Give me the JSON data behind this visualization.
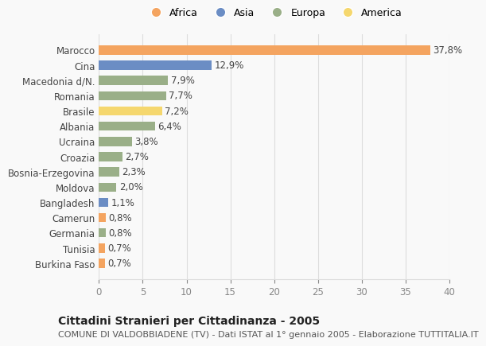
{
  "countries": [
    "Marocco",
    "Cina",
    "Macedonia d/N.",
    "Romania",
    "Brasile",
    "Albania",
    "Ucraina",
    "Croazia",
    "Bosnia-Erzegovina",
    "Moldova",
    "Bangladesh",
    "Camerun",
    "Germania",
    "Tunisia",
    "Burkina Faso"
  ],
  "values": [
    37.8,
    12.9,
    7.9,
    7.7,
    7.2,
    6.4,
    3.8,
    2.7,
    2.3,
    2.0,
    1.1,
    0.8,
    0.8,
    0.7,
    0.7
  ],
  "labels": [
    "37,8%",
    "12,9%",
    "7,9%",
    "7,7%",
    "7,2%",
    "6,4%",
    "3,8%",
    "2,7%",
    "2,3%",
    "2,0%",
    "1,1%",
    "0,8%",
    "0,8%",
    "0,7%",
    "0,7%"
  ],
  "continents": [
    "Africa",
    "Asia",
    "Europa",
    "Europa",
    "America",
    "Europa",
    "Europa",
    "Europa",
    "Europa",
    "Europa",
    "Asia",
    "Africa",
    "Europa",
    "Africa",
    "Africa"
  ],
  "colors": {
    "Africa": "#F4A460",
    "Asia": "#6B8DC4",
    "Europa": "#9AAF88",
    "America": "#F5D76E"
  },
  "legend_order": [
    "Africa",
    "Asia",
    "Europa",
    "America"
  ],
  "xlim": [
    0,
    40
  ],
  "xticks": [
    0,
    5,
    10,
    15,
    20,
    25,
    30,
    35,
    40
  ],
  "title": "Cittadini Stranieri per Cittadinanza - 2005",
  "subtitle": "COMUNE DI VALDOBBIADENE (TV) - Dati ISTAT al 1° gennaio 2005 - Elaborazione TUTTITALIA.IT",
  "background_color": "#f9f9f9",
  "grid_color": "#dddddd",
  "bar_height": 0.6,
  "label_fontsize": 8.5,
  "tick_fontsize": 8.5,
  "title_fontsize": 10,
  "subtitle_fontsize": 8
}
